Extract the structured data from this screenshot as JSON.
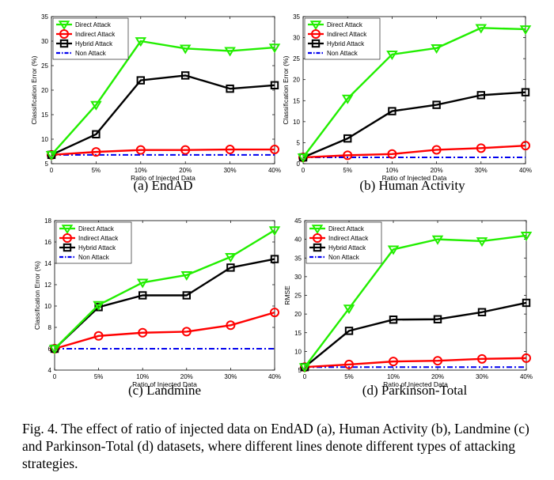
{
  "figure_caption": "Fig. 4.  The effect of ratio of injected data on EndAD (a), Human Activity (b), Landmine (c) and Parkinson-Total (d) datasets, where different lines denote different types of attacking strategies.",
  "colors": {
    "direct": "#22ee00",
    "indirect": "#ff0000",
    "hybrid": "#000000",
    "non": "#0000ee"
  },
  "chart_data": [
    {
      "type": "line",
      "subcaption": "(a)  EndAD",
      "xlabel": "Ratio of Injected Data",
      "ylabel": "Classification Error (%)",
      "categories": [
        "0",
        "5%",
        "10%",
        "20%",
        "30%",
        "40%"
      ],
      "ylim": [
        5,
        35
      ],
      "yticks": [
        5,
        10,
        15,
        20,
        25,
        30,
        35
      ],
      "legend_position": "top-left",
      "series": [
        {
          "name": "Direct Attack",
          "marker": "triangle-down",
          "values": [
            6.8,
            17,
            30,
            28.5,
            28,
            28.7
          ]
        },
        {
          "name": "Indirect Attack",
          "marker": "circle",
          "values": [
            6.8,
            7.4,
            7.8,
            7.8,
            7.9,
            7.9
          ]
        },
        {
          "name": "Hybrid Attack",
          "marker": "square",
          "values": [
            6.8,
            11,
            22,
            23,
            20.3,
            21
          ]
        },
        {
          "name": "Non Attack",
          "marker": "none",
          "dashed": true,
          "values": [
            6.8,
            6.8,
            6.8,
            6.8,
            6.8,
            6.8
          ]
        }
      ]
    },
    {
      "type": "line",
      "subcaption": "(b)  Human Activity",
      "xlabel": "Ratio of Injected Data",
      "ylabel": "Classification Error (%)",
      "categories": [
        "0",
        "5%",
        "10%",
        "20%",
        "30%",
        "40%"
      ],
      "ylim": [
        0,
        35
      ],
      "yticks": [
        0,
        5,
        10,
        15,
        20,
        25,
        30,
        35
      ],
      "legend_position": "top-left",
      "series": [
        {
          "name": "Direct Attack",
          "marker": "triangle-down",
          "values": [
            1.5,
            15.5,
            26,
            27.5,
            32.3,
            32
          ]
        },
        {
          "name": "Indirect Attack",
          "marker": "circle",
          "values": [
            1.5,
            2,
            2.3,
            3.3,
            3.7,
            4.3
          ]
        },
        {
          "name": "Hybrid Attack",
          "marker": "square",
          "values": [
            1.5,
            6,
            12.5,
            14,
            16.3,
            17
          ]
        },
        {
          "name": "Non Attack",
          "marker": "none",
          "dashed": true,
          "values": [
            1.5,
            1.5,
            1.5,
            1.5,
            1.5,
            1.5
          ]
        }
      ]
    },
    {
      "type": "line",
      "subcaption": "(c)  Landmine",
      "xlabel": "Ratio of Injected Data",
      "ylabel": "Classification Error (%)",
      "categories": [
        "0",
        "5%",
        "10%",
        "20%",
        "30%",
        "40%"
      ],
      "ylim": [
        4,
        18
      ],
      "yticks": [
        4,
        6,
        8,
        10,
        12,
        14,
        16,
        18
      ],
      "legend_position": "top-left",
      "series": [
        {
          "name": "Direct Attack",
          "marker": "triangle-down",
          "values": [
            6,
            10.1,
            12.2,
            12.9,
            14.6,
            17.1
          ]
        },
        {
          "name": "Indirect Attack",
          "marker": "circle",
          "values": [
            6,
            7.2,
            7.5,
            7.6,
            8.2,
            9.4
          ]
        },
        {
          "name": "Hybrid Attack",
          "marker": "square",
          "values": [
            6,
            9.9,
            11,
            11,
            13.6,
            14.4
          ]
        },
        {
          "name": "Non Attack",
          "marker": "none",
          "dashed": true,
          "values": [
            6,
            6,
            6,
            6,
            6,
            6
          ]
        }
      ]
    },
    {
      "type": "line",
      "subcaption": "(d)  Parkinson-Total",
      "xlabel": "Ratio of Injected Data",
      "ylabel": "RMSE",
      "categories": [
        "0",
        "5%",
        "10%",
        "20%",
        "30%",
        "40%"
      ],
      "ylim": [
        5,
        45
      ],
      "yticks": [
        5,
        10,
        15,
        20,
        25,
        30,
        35,
        40,
        45
      ],
      "legend_position": "top-left",
      "series": [
        {
          "name": "Direct Attack",
          "marker": "triangle-down",
          "values": [
            5.8,
            21.5,
            37.3,
            40,
            39.5,
            41
          ]
        },
        {
          "name": "Indirect Attack",
          "marker": "circle",
          "values": [
            5.8,
            6.5,
            7.3,
            7.5,
            8,
            8.2
          ]
        },
        {
          "name": "Hybrid Attack",
          "marker": "square",
          "values": [
            5.8,
            15.5,
            18.5,
            18.6,
            20.5,
            23
          ]
        },
        {
          "name": "Non Attack",
          "marker": "none",
          "dashed": true,
          "values": [
            5.8,
            5.8,
            5.8,
            5.8,
            5.8,
            5.8
          ]
        }
      ]
    }
  ]
}
